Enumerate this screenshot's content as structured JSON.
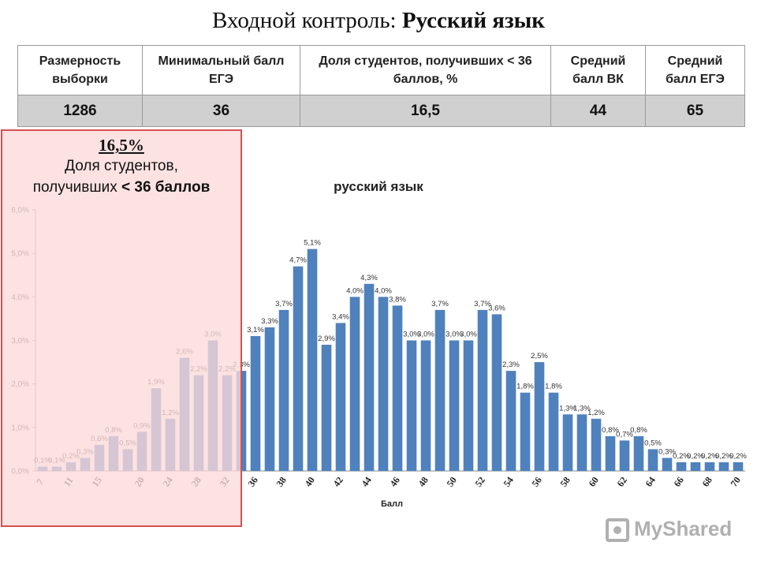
{
  "header": {
    "title_plain": "Входной контроль: ",
    "title_bold": "Русский язык"
  },
  "summary_table": {
    "headers": [
      "Размерность выборки",
      "Минимальный балл ЕГЭ",
      "Доля студентов, получивших < 36 баллов, %",
      "Средний балл ВК",
      "Средний балл ЕГЭ"
    ],
    "values": [
      "1286",
      "36",
      "16,5",
      "44",
      "65"
    ]
  },
  "callout": {
    "percent": "16,5%",
    "line1": "Доля студентов,",
    "line2_plain": "получивших ",
    "line2_bold": "< 36 баллов"
  },
  "watermark": {
    "text": "MyShared"
  },
  "colors": {
    "bar": "#4f81bd",
    "highlight_fill": "#fcdada",
    "highlight_border": "#d85050",
    "table_value_bg": "#d0d0d0"
  },
  "chart_data": {
    "type": "bar",
    "title": "русский язык",
    "xlabel": "Балл",
    "ylabel": "",
    "ylim": [
      0,
      6.0
    ],
    "y_ticks": [
      "0,0%",
      "1,0%",
      "2,0%",
      "3,0%",
      "4,0%",
      "5,0%",
      "6,0%"
    ],
    "x": [
      7,
      9,
      11,
      13,
      15,
      17,
      19,
      20,
      22,
      24,
      26,
      28,
      30,
      32,
      34,
      36,
      37,
      38,
      39,
      40,
      41,
      42,
      43,
      44,
      45,
      46,
      47,
      48,
      49,
      50,
      51,
      52,
      53,
      54,
      55,
      56,
      57,
      58,
      59,
      60,
      61,
      62,
      63,
      64,
      65,
      66,
      67,
      68,
      69,
      70
    ],
    "x_tick_labels": [
      "7",
      "11",
      "15",
      "20",
      "24",
      "28",
      "32",
      "36",
      "38",
      "40",
      "42",
      "44",
      "46",
      "48",
      "50",
      "52",
      "54",
      "56",
      "58",
      "60",
      "62",
      "64",
      "66",
      "68",
      "70"
    ],
    "values": [
      0.1,
      0.1,
      0.2,
      0.3,
      0.6,
      0.8,
      0.5,
      0.9,
      1.9,
      1.2,
      2.6,
      2.2,
      3.0,
      2.2,
      2.3,
      3.1,
      3.3,
      3.7,
      4.7,
      5.1,
      2.9,
      3.4,
      4.0,
      4.3,
      4.0,
      3.8,
      3.0,
      3.0,
      3.7,
      3.0,
      3.0,
      3.7,
      3.6,
      2.3,
      1.8,
      2.5,
      1.8,
      1.3,
      1.3,
      1.2,
      0.8,
      0.7,
      0.8,
      0.5,
      0.3,
      0.2,
      0.2,
      0.2,
      0.2,
      0.2
    ],
    "value_labels": [
      "0,1%",
      "0,1%",
      "0,2%",
      "0,3%",
      "0,6%",
      "0,8%",
      "0,5%",
      "0,9%",
      "1,9%",
      "1,2%",
      "2,6%",
      "2,2%",
      "3,0%",
      "2,2%",
      "2,3%",
      "3,1%",
      "3,3%",
      "3,7%",
      "4,7%",
      "5,1%",
      "2,9%",
      "3,4%",
      "4,0%",
      "4,3%",
      "4,0%",
      "3,8%",
      "3,0%",
      "3,0%",
      "3,7%",
      "3,0%",
      "3,0%",
      "3,7%",
      "3,6%",
      "2,3%",
      "1,8%",
      "2,5%",
      "1,8%",
      "1,3%",
      "1,3%",
      "1,2%",
      "0,8%",
      "0,7%",
      "0,8%",
      "0,5%",
      "0,3%",
      "0,2%",
      "0,2%",
      "0,2%",
      "0,2%",
      "0,2%"
    ]
  }
}
